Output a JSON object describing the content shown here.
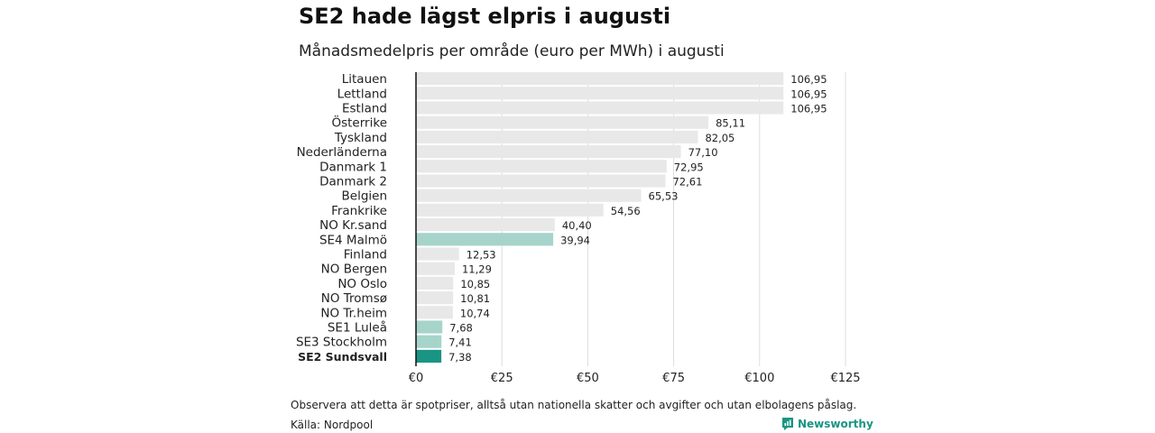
{
  "title": "SE2 hade lägst elpris i augusti",
  "subtitle": "Månadsmedelpris per område (euro per MWh) i augusti",
  "note": "Observera att detta är spotpriser, alltså utan nationella skatter och avgifter och utan elbolagens påslag.",
  "source": "Källa: Nordpool",
  "logo_text": "Newsworthy",
  "colors": {
    "default_bar": "#e8e8e8",
    "se_bar": "#a6d4cb",
    "highlight_bar": "#1a9484",
    "grid": "#dddddd",
    "axis": "#111111"
  },
  "chart_data": {
    "type": "bar",
    "orientation": "horizontal",
    "categories": [
      "Litauen",
      "Lettland",
      "Estland",
      "Österrike",
      "Tyskland",
      "Nederländerna",
      "Danmark  1",
      "Danmark  2",
      "Belgien",
      "Frankrike",
      "NO Kr.sand",
      "SE4  Malmö",
      "Finland",
      "NO Bergen",
      "NO Oslo",
      "NO Tromsø",
      "NO Tr.heim",
      "SE1  Luleå",
      "SE3  Stockholm",
      "SE2 Sundsvall"
    ],
    "values": [
      106.95,
      106.95,
      106.95,
      85.11,
      82.05,
      77.1,
      72.95,
      72.61,
      65.53,
      54.56,
      40.4,
      39.94,
      12.53,
      11.29,
      10.85,
      10.81,
      10.74,
      7.68,
      7.41,
      7.38
    ],
    "value_labels": [
      "106,95",
      "106,95",
      "106,95",
      "85,11",
      "82,05",
      "77,10",
      "72,95",
      "72,61",
      "65,53",
      "54,56",
      "40,40",
      "39,94",
      "12,53",
      "11,29",
      "10,85",
      "10,81",
      "10,74",
      "7,68",
      "7,41",
      "7,38"
    ],
    "bar_style": [
      "default",
      "default",
      "default",
      "default",
      "default",
      "default",
      "default",
      "default",
      "default",
      "default",
      "default",
      "se",
      "default",
      "default",
      "default",
      "default",
      "default",
      "se",
      "se",
      "highlight"
    ],
    "bold_labels": [
      "SE2 Sundsvall"
    ],
    "xlim": [
      0,
      125
    ],
    "xticks": [
      0,
      25,
      50,
      75,
      100,
      125
    ],
    "xtick_labels": [
      "€0",
      "€25",
      "€50",
      "€75",
      "€100",
      "€125"
    ],
    "grid": true,
    "legend": "none"
  }
}
